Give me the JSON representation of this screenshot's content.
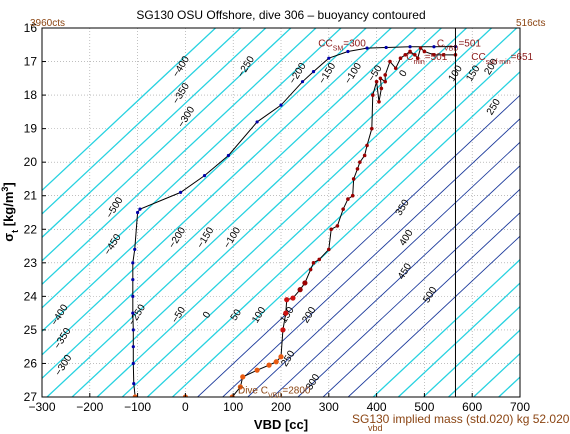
{
  "chart_data": {
    "type": "line",
    "title": "SG130 OSU Offshore, dive 306 – buoyancy contoured",
    "xlabel": "VBD [cc]",
    "ylabel": "σt [kg/m3]",
    "xlim": [
      -300,
      700
    ],
    "ylim": [
      27,
      16
    ],
    "x_ticks": [
      "−300",
      "−200",
      "−100",
      "0",
      "100",
      "200",
      "300",
      "400",
      "500",
      "600",
      "700"
    ],
    "y_ticks": [
      "16",
      "17",
      "18",
      "19",
      "20",
      "21",
      "22",
      "23",
      "24",
      "25",
      "26",
      "27"
    ],
    "grid": true,
    "buoyancy_contours": {
      "levels": [
        -500,
        -450,
        -400,
        -350,
        -300,
        -250,
        -200,
        -150,
        -100,
        -50,
        0,
        50,
        100,
        150,
        200,
        250,
        300,
        350,
        400,
        450,
        500
      ],
      "labels": [
        {
          "text": "−500",
          "x": -143,
          "y": 21.4
        },
        {
          "text": "−450",
          "x": -147,
          "y": 22.5
        },
        {
          "text": "−400",
          "x": -258,
          "y": 24.6
        },
        {
          "text": "−350",
          "x": -252,
          "y": 25.3
        },
        {
          "text": "−300",
          "x": -250,
          "y": 26.1
        },
        {
          "text": "−250",
          "x": -96,
          "y": 24.6
        },
        {
          "text": "−200",
          "x": -12,
          "y": 22.3
        },
        {
          "text": "−150",
          "x": 47,
          "y": 22.3
        },
        {
          "text": "−100",
          "x": 103,
          "y": 22.3
        },
        {
          "text": "−50",
          "x": -9,
          "y": 24.6
        },
        {
          "text": "0",
          "x": 50,
          "y": 24.6
        },
        {
          "text": "50",
          "x": 111,
          "y": 24.6
        },
        {
          "text": "100",
          "x": 159,
          "y": 24.6
        },
        {
          "text": "150",
          "x": 218,
          "y": 24.6
        },
        {
          "text": "200",
          "x": 264,
          "y": 24.6
        },
        {
          "text": "250",
          "x": 220,
          "y": 25.9
        },
        {
          "text": "300",
          "x": 272,
          "y": 26.6
        },
        {
          "text": "350",
          "x": 459,
          "y": 21.4
        },
        {
          "text": "400",
          "x": 467,
          "y": 22.3
        },
        {
          "text": "450",
          "x": 464,
          "y": 23.3
        },
        {
          "text": "500",
          "x": 517,
          "y": 24.0
        },
        {
          "text": "−400",
          "x": -4,
          "y": 17.2
        },
        {
          "text": "−350",
          "x": -4,
          "y": 18.0
        },
        {
          "text": "−300",
          "x": 7,
          "y": 18.7
        },
        {
          "text": "−250",
          "x": 132,
          "y": 17.2
        },
        {
          "text": "−200",
          "x": 240,
          "y": 17.4
        },
        {
          "text": "−150",
          "x": 302,
          "y": 17.4
        },
        {
          "text": "−100",
          "x": 356,
          "y": 17.4
        },
        {
          "text": "−50",
          "x": 402,
          "y": 17.4
        },
        {
          "text": "0",
          "x": 461,
          "y": 17.4
        },
        {
          "text": "100",
          "x": 570,
          "y": 17.4
        },
        {
          "text": "150",
          "x": 607,
          "y": 17.4
        },
        {
          "text": "200",
          "x": 645,
          "y": 17.2
        },
        {
          "text": "250",
          "x": 650,
          "y": 18.4
        }
      ]
    },
    "series": [
      {
        "segment": "dive",
        "points": [
          [
            -105,
            27.0
          ],
          [
            -108,
            26.6
          ],
          [
            -109,
            26.0
          ],
          [
            -109,
            25.5
          ],
          [
            -109,
            25.0
          ],
          [
            -110,
            24.5
          ],
          [
            -110,
            24.0
          ],
          [
            -110,
            23.5
          ],
          [
            -110,
            23.0
          ],
          [
            -106,
            22.6
          ],
          [
            -100,
            21.5
          ],
          [
            -95,
            21.4
          ],
          [
            -10,
            20.9
          ],
          [
            40,
            20.4
          ],
          [
            90,
            19.8
          ],
          [
            150,
            18.8
          ],
          [
            200,
            18.3
          ],
          [
            245,
            17.6
          ],
          [
            268,
            17.3
          ],
          [
            300,
            16.9
          ],
          [
            340,
            16.7
          ],
          [
            380,
            16.6
          ],
          [
            420,
            16.58
          ],
          [
            470,
            16.56
          ],
          [
            520,
            16.56
          ],
          [
            565,
            16.55
          ]
        ]
      },
      {
        "segment": "climb",
        "points": [
          [
            -105,
            27.0
          ],
          [
            0,
            27.0
          ],
          [
            98,
            27.0
          ],
          [
            115,
            26.7
          ],
          [
            120,
            26.4
          ],
          [
            150,
            26.2
          ],
          [
            175,
            26.05
          ],
          [
            190,
            25.95
          ],
          [
            200,
            25.8
          ],
          [
            204,
            25.0
          ],
          [
            210,
            24.5
          ],
          [
            212,
            24.1
          ],
          [
            225,
            24.05
          ],
          [
            240,
            23.8
          ],
          [
            250,
            23.6
          ],
          [
            262,
            23.2
          ],
          [
            268,
            23.0
          ],
          [
            280,
            22.9
          ],
          [
            300,
            22.6
          ],
          [
            305,
            22.0
          ],
          [
            318,
            21.9
          ],
          [
            330,
            21.4
          ],
          [
            340,
            21.1
          ],
          [
            350,
            21.0
          ],
          [
            352,
            20.5
          ],
          [
            360,
            20.2
          ],
          [
            365,
            20.0
          ],
          [
            375,
            19.8
          ],
          [
            380,
            19.5
          ],
          [
            390,
            19.0
          ],
          [
            392,
            18.0
          ],
          [
            400,
            17.6
          ],
          [
            405,
            18.2
          ],
          [
            410,
            17.8
          ],
          [
            408,
            17.5
          ],
          [
            418,
            17.6
          ],
          [
            418,
            17.4
          ],
          [
            428,
            17.0
          ],
          [
            440,
            17.2
          ],
          [
            450,
            16.9
          ],
          [
            460,
            16.8
          ],
          [
            470,
            16.7
          ],
          [
            480,
            16.8
          ],
          [
            486,
            16.9
          ],
          [
            492,
            16.6
          ],
          [
            500,
            16.7
          ],
          [
            520,
            16.8
          ],
          [
            540,
            16.8
          ],
          [
            565,
            16.8
          ]
        ]
      }
    ],
    "vertical_lines": [
      {
        "x": 565
      }
    ],
    "annotations": [
      {
        "text": "CC",
        "sub": "SM",
        "rest": "=300",
        "x": 278,
        "y": 16.55
      },
      {
        "text": "C",
        "sub": "VBD",
        "rest": "=501",
        "x": 526,
        "y": 16.55
      },
      {
        "text": "CC",
        "sub": "surf min",
        "rest": "=651",
        "x": 598,
        "y": 16.95
      },
      {
        "text": "C",
        "sub": "min",
        "rest": "=501",
        "x": 462,
        "y": 16.95
      },
      {
        "text": "Dive C",
        "sub": "VBD",
        "rest": "=2800",
        "x": 110,
        "y": 26.9
      }
    ],
    "corner_labels": {
      "left": "3960cts",
      "right": "516cts"
    },
    "footer": {
      "text": "SG130 implied mass (std.020) kg 52.020",
      "sub": "vbd"
    }
  }
}
